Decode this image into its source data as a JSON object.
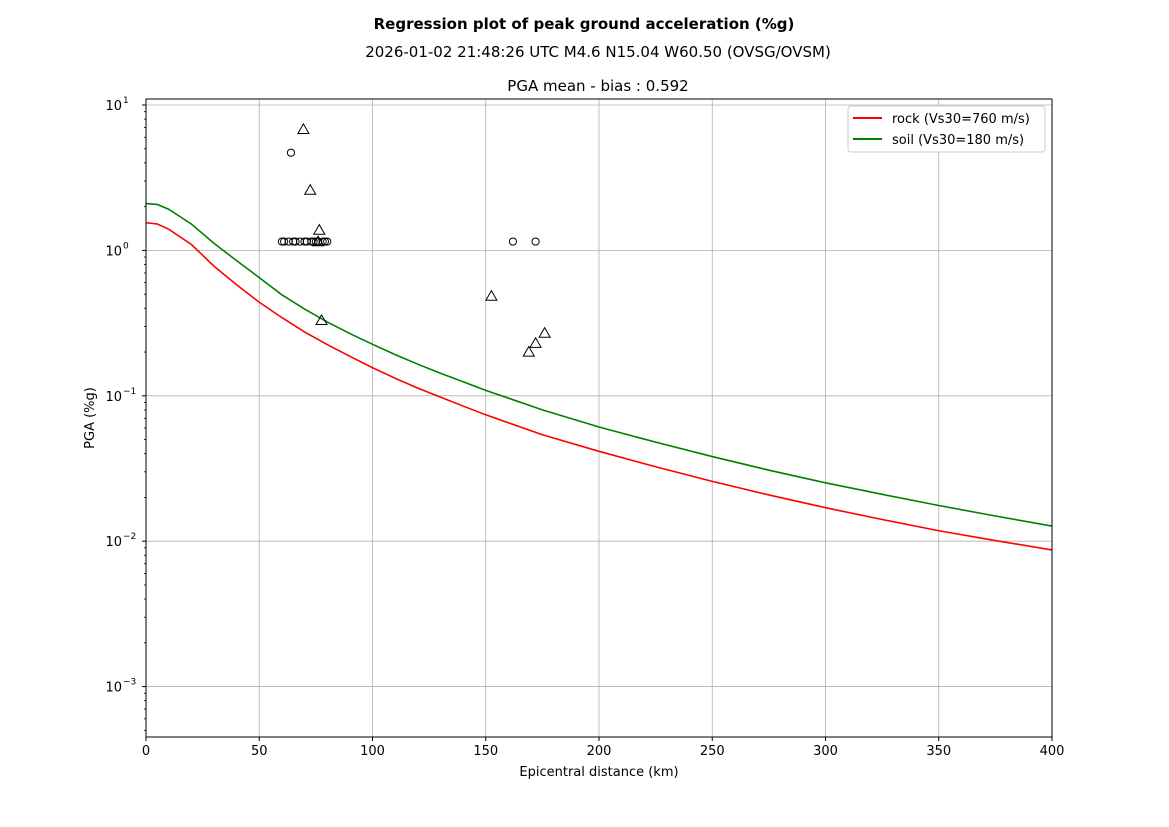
{
  "chart_data": {
    "type": "scatter",
    "title": "Regression plot of peak ground acceleration (%g)",
    "subtitle": "2026-01-02 21:48:26 UTC M4.6 N15.04 W60.50 (OVSG/OVSM)",
    "axes_title": "PGA mean - bias : 0.592",
    "xlabel": "Epicentral distance (km)",
    "ylabel": "PGA (%g)",
    "xlim": [
      0,
      400
    ],
    "ylim": [
      0.00045,
      11
    ],
    "yscale": "log",
    "grid": true,
    "legend_position": "top-right",
    "x_ticks": [
      0,
      50,
      100,
      150,
      200,
      250,
      300,
      350,
      400
    ],
    "y_ticks": [
      {
        "value": 0.001,
        "base": "10",
        "exp": "−3"
      },
      {
        "value": 0.01,
        "base": "10",
        "exp": "−2"
      },
      {
        "value": 0.1,
        "base": "10",
        "exp": "−1"
      },
      {
        "value": 1,
        "base": "10",
        "exp": "0"
      },
      {
        "value": 10,
        "base": "10",
        "exp": "1"
      }
    ],
    "curves": [
      {
        "name": "rock (Vs30=760 m/s)",
        "color": "#ff0000",
        "points": [
          [
            0,
            1.55
          ],
          [
            5,
            1.52
          ],
          [
            10,
            1.4
          ],
          [
            20,
            1.1
          ],
          [
            30,
            0.78
          ],
          [
            40,
            0.58
          ],
          [
            50,
            0.44
          ],
          [
            60,
            0.345
          ],
          [
            70,
            0.275
          ],
          [
            80,
            0.225
          ],
          [
            90,
            0.187
          ],
          [
            100,
            0.156
          ],
          [
            110,
            0.132
          ],
          [
            120,
            0.113
          ],
          [
            130,
            0.098
          ],
          [
            140,
            0.085
          ],
          [
            150,
            0.074
          ],
          [
            175,
            0.054
          ],
          [
            200,
            0.0415
          ],
          [
            225,
            0.0325
          ],
          [
            250,
            0.0258
          ],
          [
            275,
            0.0208
          ],
          [
            300,
            0.017
          ],
          [
            325,
            0.0141
          ],
          [
            350,
            0.0118
          ],
          [
            375,
            0.0101
          ],
          [
            400,
            0.0087
          ]
        ]
      },
      {
        "name": "soil (Vs30=180 m/s)",
        "color": "#008000",
        "points": [
          [
            0,
            2.1
          ],
          [
            5,
            2.07
          ],
          [
            10,
            1.92
          ],
          [
            20,
            1.52
          ],
          [
            30,
            1.12
          ],
          [
            40,
            0.85
          ],
          [
            50,
            0.65
          ],
          [
            60,
            0.495
          ],
          [
            70,
            0.395
          ],
          [
            80,
            0.322
          ],
          [
            90,
            0.268
          ],
          [
            100,
            0.226
          ],
          [
            110,
            0.192
          ],
          [
            120,
            0.165
          ],
          [
            130,
            0.143
          ],
          [
            140,
            0.125
          ],
          [
            150,
            0.109
          ],
          [
            175,
            0.08
          ],
          [
            200,
            0.061
          ],
          [
            225,
            0.048
          ],
          [
            250,
            0.0382
          ],
          [
            275,
            0.0308
          ],
          [
            300,
            0.0252
          ],
          [
            325,
            0.021
          ],
          [
            350,
            0.0176
          ],
          [
            375,
            0.0149
          ],
          [
            400,
            0.0127
          ]
        ]
      }
    ],
    "observations": {
      "circles": [
        [
          64,
          4.7
        ],
        [
          60,
          1.15
        ],
        [
          61,
          1.15
        ],
        [
          63,
          1.15
        ],
        [
          65,
          1.15
        ],
        [
          66,
          1.15
        ],
        [
          68,
          1.15
        ],
        [
          70,
          1.15
        ],
        [
          71,
          1.15
        ],
        [
          73,
          1.15
        ],
        [
          74,
          1.15
        ],
        [
          75,
          1.15
        ],
        [
          76,
          1.15
        ],
        [
          78,
          1.15
        ],
        [
          79,
          1.15
        ],
        [
          80,
          1.15
        ],
        [
          162,
          1.15
        ],
        [
          172,
          1.15
        ]
      ],
      "triangles": [
        [
          69.5,
          6.8
        ],
        [
          72.5,
          2.6
        ],
        [
          76.5,
          1.38
        ],
        [
          76,
          1.15
        ],
        [
          77.5,
          0.33
        ],
        [
          152.5,
          0.485
        ],
        [
          169,
          0.2
        ],
        [
          172,
          0.23
        ],
        [
          176,
          0.27
        ]
      ]
    }
  }
}
